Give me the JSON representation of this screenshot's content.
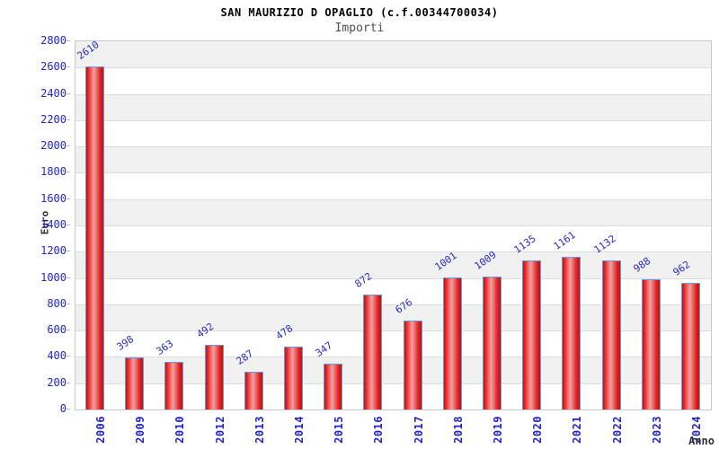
{
  "header": {
    "title": "SAN MAURIZIO D OPAGLIO (c.f.00344700034)",
    "subtitle": "Importi"
  },
  "axes": {
    "y_label": "Euro",
    "x_label": "Anno"
  },
  "chart_data": {
    "type": "bar",
    "title": "SAN MAURIZIO D OPAGLIO (c.f.00344700034)",
    "subtitle": "Importi",
    "xlabel": "Anno",
    "ylabel": "Euro",
    "categories": [
      "2006",
      "2009",
      "2010",
      "2012",
      "2013",
      "2014",
      "2015",
      "2016",
      "2017",
      "2018",
      "2019",
      "2020",
      "2021",
      "2022",
      "2023",
      "2024"
    ],
    "values": [
      2610,
      398,
      363,
      492,
      287,
      478,
      347,
      872,
      676,
      1001,
      1009,
      1135,
      1161,
      1132,
      988,
      962
    ],
    "ylim": [
      0,
      2800
    ],
    "ytick_step": 200,
    "grid": true,
    "band_step": 200,
    "legend": "none",
    "bar_labels_shown": true
  },
  "colors": {
    "tick_label_blue": "#2323c8",
    "value_label_blue": "#2a2ac0",
    "bar_border_blue": "#5f9ce0",
    "bar_gradient": [
      "#b51515",
      "#ee2424",
      "#f2a2a2",
      "#e02020",
      "#bd1414"
    ],
    "band_gray": "#f1f1f1",
    "band_white": "#ffffff",
    "grid_line": "#dcdcdc",
    "plot_border": "#c8c8c8",
    "title_color": "#000000",
    "subtitle_color": "#505050",
    "axis_title_color": "#303030"
  }
}
